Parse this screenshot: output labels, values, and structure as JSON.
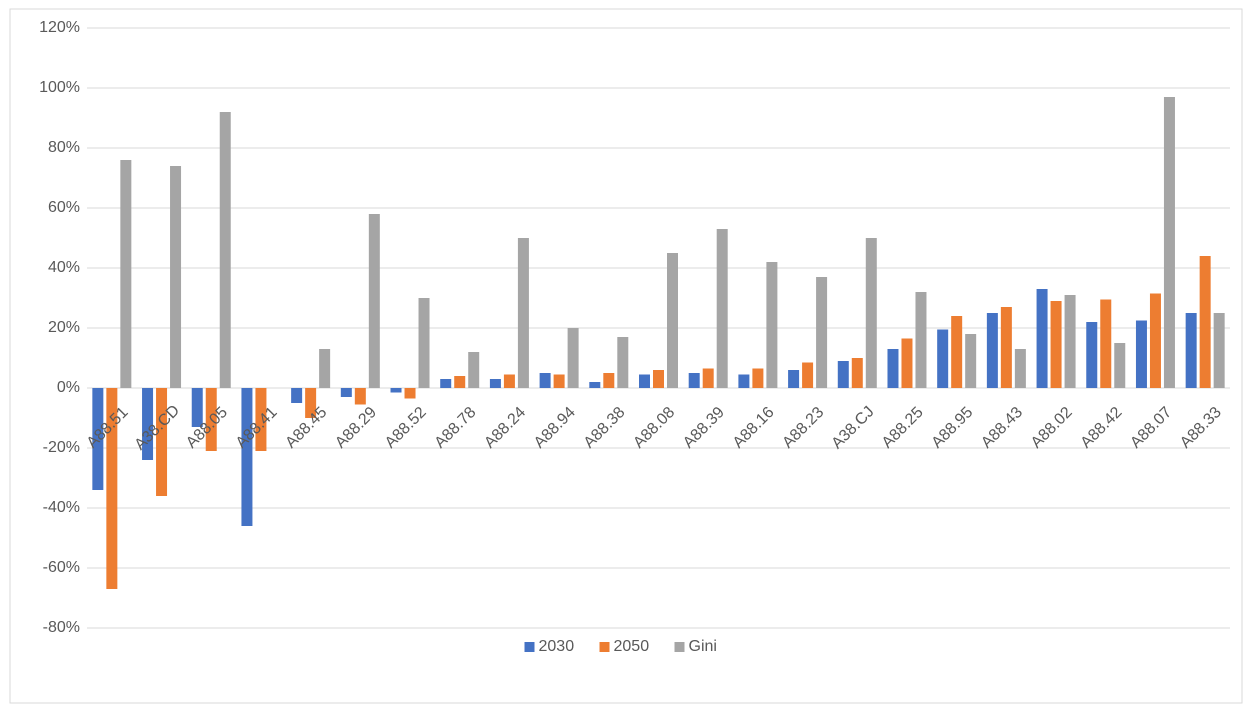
{
  "chart_data": {
    "type": "bar",
    "categories": [
      "A88.51",
      "A38.CD",
      "A88.05",
      "A88.41",
      "A88.45",
      "A88.29",
      "A88.52",
      "A88.78",
      "A88.24",
      "A88.94",
      "A88.38",
      "A88.08",
      "A88.39",
      "A88.16",
      "A88.23",
      "A38.CJ",
      "A88.25",
      "A88.95",
      "A88.43",
      "A88.02",
      "A88.42",
      "A88.07",
      "A88.33"
    ],
    "series": [
      {
        "name": "2030",
        "color": "#4472c4",
        "values": [
          -34,
          -24,
          -13,
          -46,
          -5,
          -3,
          -1.5,
          3,
          3,
          5,
          2,
          4.5,
          5,
          4.5,
          6,
          9,
          13,
          19.5,
          25,
          33,
          22,
          22.5,
          25
        ]
      },
      {
        "name": "2050",
        "color": "#ed7d31",
        "values": [
          -67,
          -36,
          -21,
          -21,
          -10,
          -5.5,
          -3.5,
          4,
          4.5,
          4.5,
          5,
          6,
          6.5,
          6.5,
          8.5,
          10,
          16.5,
          24,
          27,
          29,
          29.5,
          31.5,
          44
        ]
      },
      {
        "name": "Gini",
        "color": "#a5a5a5",
        "values": [
          76,
          74,
          92,
          0,
          13,
          58,
          30,
          12,
          50,
          20,
          17,
          45,
          53,
          42,
          37,
          50,
          32,
          18,
          13,
          31,
          15,
          97,
          25
        ]
      }
    ],
    "ylim": [
      -80,
      120
    ],
    "yticks": [
      {
        "value": -80,
        "label": "-80%"
      },
      {
        "value": -60,
        "label": "-60%"
      },
      {
        "value": -40,
        "label": "-40%"
      },
      {
        "value": -20,
        "label": "-20%"
      },
      {
        "value": 0,
        "label": "0%"
      },
      {
        "value": 20,
        "label": "20%"
      },
      {
        "value": 40,
        "label": "40%"
      },
      {
        "value": 60,
        "label": "60%"
      },
      {
        "value": 80,
        "label": "80%"
      },
      {
        "value": 100,
        "label": "100%"
      },
      {
        "value": 120,
        "label": "120%"
      }
    ],
    "grid": true,
    "legend": "bottom"
  }
}
